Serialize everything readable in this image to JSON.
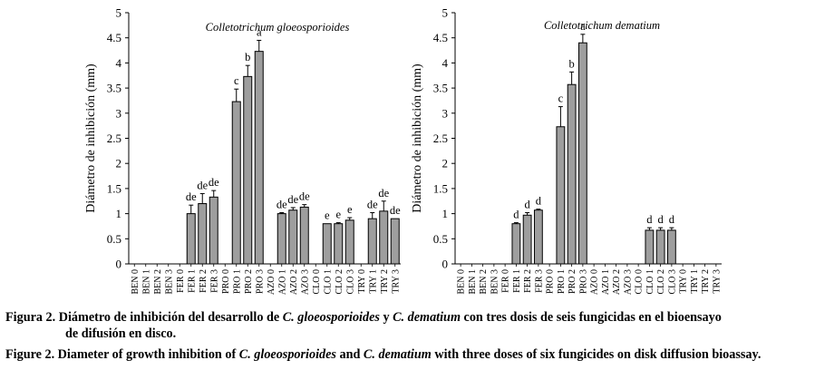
{
  "chart_data": [
    {
      "type": "bar",
      "title": "Colletotrichum gloeosporioides",
      "ylabel": "Diámetro de inhibición (mm)",
      "xlabel": "",
      "ylim": [
        0,
        5
      ],
      "yticks": [
        "0",
        "0.5",
        "1",
        "1.5",
        "2",
        "2.5",
        "3",
        "3.5",
        "4",
        "4.5",
        "5"
      ],
      "grid": false,
      "bar_color": "#9e9e9e",
      "categories": [
        "BEN 0",
        "BEN 1",
        "BEN 2",
        "BEN 3",
        "FER 0",
        "FER 1",
        "FER 2",
        "FER 3",
        "PRO 0",
        "PRO 1",
        "PRO 2",
        "PRO 3",
        "AZO 0",
        "AZO 1",
        "AZO 2",
        "AZO 3",
        "CLO 0",
        "CLO 1",
        "CLO 2",
        "CLO 3",
        "TRY 0",
        "TRY 1",
        "TRY 2",
        "TRY 3"
      ],
      "values": [
        0,
        0,
        0,
        0,
        0,
        1.0,
        1.2,
        1.33,
        0,
        3.23,
        3.73,
        4.23,
        0,
        1.0,
        1.07,
        1.13,
        0,
        0.8,
        0.8,
        0.87,
        0,
        0.9,
        1.05,
        0.9
      ],
      "errors": [
        0,
        0,
        0,
        0,
        0,
        0.17,
        0.2,
        0.13,
        0,
        0.25,
        0.22,
        0.22,
        0,
        0.02,
        0.05,
        0.05,
        0,
        0,
        0.02,
        0.05,
        0,
        0.12,
        0.2,
        0
      ],
      "letters": [
        "",
        "",
        "",
        "",
        "",
        "de",
        "de",
        "de",
        "",
        "c",
        "b",
        "a",
        "",
        "de",
        "de",
        "de",
        "",
        "e",
        "e",
        "e",
        "",
        "de",
        "de",
        "de"
      ]
    },
    {
      "type": "bar",
      "title": "Colletotrichum dematium",
      "ylabel": "Diámetro de inhibición (mm)",
      "xlabel": "",
      "ylim": [
        0,
        5
      ],
      "yticks": [
        "0",
        "0.5",
        "1",
        "1.5",
        "2",
        "2.5",
        "3",
        "3.5",
        "4",
        "4.5",
        "5"
      ],
      "grid": false,
      "bar_color": "#9e9e9e",
      "categories": [
        "BEN 0",
        "BEN 1",
        "BEN 2",
        "BEN 3",
        "FER 0",
        "FER 1",
        "FER 2",
        "FER 3",
        "PRO 0",
        "PRO 1",
        "PRO 2",
        "PRO 3",
        "AZO 0",
        "AZO 1",
        "AZO 2",
        "AZO 3",
        "CLO 0",
        "CLO 1",
        "CLO 2",
        "CLO 3",
        "TRY 0",
        "TRY 1",
        "TRY 2",
        "TRY 3"
      ],
      "values": [
        0,
        0,
        0,
        0,
        0,
        0.8,
        0.97,
        1.07,
        0,
        2.73,
        3.57,
        4.4,
        0,
        0,
        0,
        0,
        0,
        0.67,
        0.67,
        0.67,
        0,
        0,
        0,
        0
      ],
      "errors": [
        0,
        0,
        0,
        0,
        0,
        0.02,
        0.05,
        0.02,
        0,
        0.4,
        0.25,
        0.17,
        0,
        0,
        0,
        0,
        0,
        0.05,
        0.05,
        0.05,
        0,
        0,
        0,
        0
      ],
      "letters": [
        "",
        "",
        "",
        "",
        "",
        "d",
        "d",
        "d",
        "",
        "c",
        "b",
        "a",
        "",
        "",
        "",
        "",
        "",
        "d",
        "d",
        "d",
        "",
        "",
        "",
        ""
      ]
    }
  ],
  "caption": {
    "es_prefix": "Figura 2. Diámetro de inhibición del desarrollo de ",
    "es_sp1": "C. gloeosporioides",
    "es_mid": " y ",
    "es_sp2": "C. dematium",
    "es_suffix": " con tres dosis de seis fungicidas en el bioensayo",
    "es_line2": "de difusión en disco.",
    "en_prefix": "Figure 2. Diameter of growth inhibition of ",
    "en_sp1": "C. gloeosporioides",
    "en_mid": " and ",
    "en_sp2": "C. dematium",
    "en_suffix": " with three doses of six fungicides on disk diffusion bioassay."
  }
}
